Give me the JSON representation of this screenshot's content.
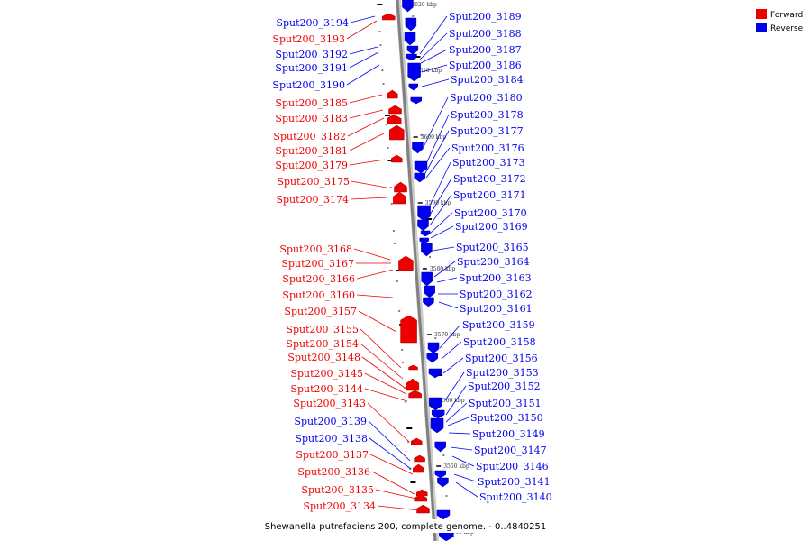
{
  "colors": {
    "forward": "#ee0000",
    "reverse": "#0000ee",
    "backbone": "#808080",
    "tick": "#000000"
  },
  "legend": [
    {
      "label": "Forward",
      "strand": "forward"
    },
    {
      "label": "Reverse",
      "strand": "reverse"
    }
  ],
  "caption": "Shewanella putrefaciens 200, complete genome. - 0..4840251",
  "kbp_labels": [
    "3620 kbp",
    "3610 kbp",
    "3600 kbp",
    "3590 kbp",
    "3580 kbp",
    "3570 kbp",
    "3560 kbp",
    "3550 kbp",
    "3540 kbp"
  ],
  "left_labels": [
    {
      "text": "Sput200_3194",
      "strand": "reverse"
    },
    {
      "text": "Sput200_3193",
      "strand": "forward"
    },
    {
      "text": "Sput200_3192",
      "strand": "reverse"
    },
    {
      "text": "Sput200_3191",
      "strand": "reverse"
    },
    {
      "text": "Sput200_3190",
      "strand": "reverse"
    },
    {
      "text": "Sput200_3185",
      "strand": "forward"
    },
    {
      "text": "Sput200_3183",
      "strand": "forward"
    },
    {
      "text": "Sput200_3182",
      "strand": "forward"
    },
    {
      "text": "Sput200_3181",
      "strand": "forward"
    },
    {
      "text": "Sput200_3179",
      "strand": "forward"
    },
    {
      "text": "Sput200_3175",
      "strand": "forward"
    },
    {
      "text": "Sput200_3174",
      "strand": "forward"
    },
    {
      "text": "Sput200_3168",
      "strand": "forward"
    },
    {
      "text": "Sput200_3167",
      "strand": "forward"
    },
    {
      "text": "Sput200_3166",
      "strand": "forward"
    },
    {
      "text": "Sput200_3160",
      "strand": "forward"
    },
    {
      "text": "Sput200_3157",
      "strand": "forward"
    },
    {
      "text": "Sput200_3155",
      "strand": "forward"
    },
    {
      "text": "Sput200_3154",
      "strand": "forward"
    },
    {
      "text": "Sput200_3148",
      "strand": "forward"
    },
    {
      "text": "Sput200_3145",
      "strand": "forward"
    },
    {
      "text": "Sput200_3144",
      "strand": "forward"
    },
    {
      "text": "Sput200_3143",
      "strand": "forward"
    },
    {
      "text": "Sput200_3139",
      "strand": "reverse"
    },
    {
      "text": "Sput200_3138",
      "strand": "reverse"
    },
    {
      "text": "Sput200_3137",
      "strand": "forward"
    },
    {
      "text": "Sput200_3136",
      "strand": "forward"
    },
    {
      "text": "Sput200_3135",
      "strand": "forward"
    },
    {
      "text": "Sput200_3134",
      "strand": "forward"
    }
  ],
  "right_labels": [
    {
      "text": "Sput200_3189",
      "strand": "reverse"
    },
    {
      "text": "Sput200_3188",
      "strand": "reverse"
    },
    {
      "text": "Sput200_3187",
      "strand": "reverse"
    },
    {
      "text": "Sput200_3186",
      "strand": "reverse"
    },
    {
      "text": "Sput200_3184",
      "strand": "reverse"
    },
    {
      "text": "Sput200_3180",
      "strand": "reverse"
    },
    {
      "text": "Sput200_3178",
      "strand": "reverse"
    },
    {
      "text": "Sput200_3177",
      "strand": "reverse"
    },
    {
      "text": "Sput200_3176",
      "strand": "reverse"
    },
    {
      "text": "Sput200_3173",
      "strand": "reverse"
    },
    {
      "text": "Sput200_3172",
      "strand": "reverse"
    },
    {
      "text": "Sput200_3171",
      "strand": "reverse"
    },
    {
      "text": "Sput200_3170",
      "strand": "reverse"
    },
    {
      "text": "Sput200_3169",
      "strand": "reverse"
    },
    {
      "text": "Sput200_3165",
      "strand": "reverse"
    },
    {
      "text": "Sput200_3164",
      "strand": "reverse"
    },
    {
      "text": "Sput200_3163",
      "strand": "reverse"
    },
    {
      "text": "Sput200_3162",
      "strand": "reverse"
    },
    {
      "text": "Sput200_3161",
      "strand": "reverse"
    },
    {
      "text": "Sput200_3159",
      "strand": "reverse"
    },
    {
      "text": "Sput200_3158",
      "strand": "reverse"
    },
    {
      "text": "Sput200_3156",
      "strand": "reverse"
    },
    {
      "text": "Sput200_3153",
      "strand": "reverse"
    },
    {
      "text": "Sput200_3152",
      "strand": "reverse"
    },
    {
      "text": "Sput200_3151",
      "strand": "reverse"
    },
    {
      "text": "Sput200_3150",
      "strand": "reverse"
    },
    {
      "text": "Sput200_3149",
      "strand": "reverse"
    },
    {
      "text": "Sput200_3147",
      "strand": "reverse"
    },
    {
      "text": "Sput200_3146",
      "strand": "reverse"
    },
    {
      "text": "Sput200_3141",
      "strand": "reverse"
    },
    {
      "text": "Sput200_3140",
      "strand": "reverse"
    }
  ]
}
